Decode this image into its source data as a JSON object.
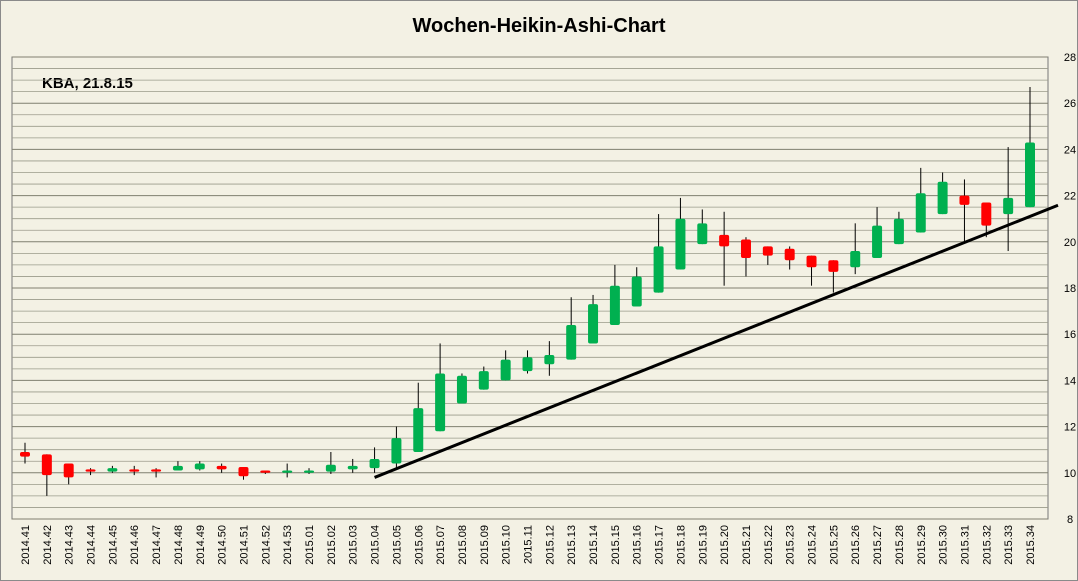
{
  "chart_data": {
    "type": "candlestick",
    "title": "Wochen-Heikin-Ashi-Chart",
    "annotation": "KBA, 21.8.15",
    "categories": [
      "2014.41",
      "2014.42",
      "2014.43",
      "2014.44",
      "2014.45",
      "2014.46",
      "2014.47",
      "2014.48",
      "2014.49",
      "2014.50",
      "2014.51",
      "2014.52",
      "2014.53",
      "2015.01",
      "2015.02",
      "2015.03",
      "2015.04",
      "2015.05",
      "2015.06",
      "2015.07",
      "2015.08",
      "2015.09",
      "2015.10",
      "2015.11",
      "2015.12",
      "2015.13",
      "2015.14",
      "2015.15",
      "2015.16",
      "2015.17",
      "2015.18",
      "2015.19",
      "2015.20",
      "2015.21",
      "2015.22",
      "2015.23",
      "2015.24",
      "2015.25",
      "2015.26",
      "2015.27",
      "2015.28",
      "2015.29",
      "2015.30",
      "2015.31",
      "2015.32",
      "2015.33",
      "2015.34"
    ],
    "open": [
      10.9,
      10.8,
      10.4,
      10.15,
      10.05,
      10.15,
      10.15,
      10.1,
      10.15,
      10.3,
      10.25,
      10.1,
      10.0,
      10.0,
      10.05,
      10.15,
      10.2,
      10.4,
      10.9,
      11.8,
      13.0,
      13.6,
      14.0,
      14.4,
      14.7,
      14.9,
      15.6,
      16.4,
      17.2,
      17.8,
      18.8,
      19.9,
      20.3,
      20.1,
      19.8,
      19.7,
      19.4,
      19.2,
      18.9,
      19.3,
      19.9,
      20.4,
      21.2,
      22.0,
      21.7,
      21.2,
      21.5
    ],
    "close": [
      10.7,
      9.9,
      9.8,
      10.05,
      10.2,
      10.05,
      10.05,
      10.3,
      10.4,
      10.15,
      9.85,
      10.0,
      10.1,
      10.1,
      10.35,
      10.3,
      10.6,
      11.5,
      12.8,
      14.3,
      14.2,
      14.4,
      14.9,
      15.0,
      15.1,
      16.4,
      17.3,
      18.1,
      18.5,
      19.8,
      21.0,
      20.8,
      19.8,
      19.3,
      19.4,
      19.2,
      18.9,
      18.7,
      19.6,
      20.7,
      21.0,
      22.1,
      22.6,
      21.6,
      20.7,
      21.9,
      24.3
    ],
    "high": [
      11.3,
      10.8,
      10.4,
      10.2,
      10.3,
      10.3,
      10.2,
      10.5,
      10.5,
      10.4,
      10.25,
      10.1,
      10.4,
      10.2,
      10.9,
      10.6,
      11.1,
      12.0,
      13.9,
      15.6,
      14.3,
      14.6,
      15.3,
      15.3,
      15.7,
      17.6,
      17.7,
      19.0,
      18.9,
      21.2,
      21.9,
      21.4,
      21.3,
      20.2,
      19.8,
      19.8,
      19.4,
      19.2,
      20.8,
      21.5,
      21.3,
      23.2,
      23.0,
      22.7,
      21.7,
      24.1,
      26.7
    ],
    "low": [
      10.4,
      9.0,
      9.5,
      9.9,
      10.0,
      9.9,
      9.8,
      10.1,
      10.1,
      10.0,
      9.7,
      9.95,
      9.8,
      9.95,
      9.95,
      10.0,
      10.0,
      10.2,
      10.9,
      11.8,
      13.0,
      13.6,
      14.0,
      14.3,
      14.2,
      14.9,
      15.6,
      16.4,
      17.2,
      17.8,
      18.8,
      19.9,
      18.1,
      18.5,
      19.0,
      18.8,
      18.1,
      17.8,
      18.6,
      19.3,
      19.9,
      20.4,
      21.2,
      20.0,
      20.2,
      19.6,
      21.5
    ],
    "up_color": "#00b050",
    "down_color": "#ff0000",
    "trendline": {
      "from": [
        "2015.04",
        9.8
      ],
      "to": [
        "2015.34",
        21.1
      ],
      "color": "#000000"
    },
    "ylim": [
      8,
      28
    ],
    "yticks": [
      8,
      10,
      12,
      14,
      16,
      18,
      20,
      22,
      24,
      26,
      28
    ],
    "minor_yticks": [
      8.5,
      9,
      9.5,
      10.5,
      11,
      11.5,
      12.5,
      13,
      13.5,
      14.5,
      15,
      15.5,
      16.5,
      17,
      17.5,
      18.5,
      19,
      19.5,
      20.5,
      21,
      21.5,
      22.5,
      23,
      23.5,
      24.5,
      25,
      25.5,
      26.5,
      27,
      27.5
    ],
    "grid": true,
    "y_axis_side": "right"
  }
}
